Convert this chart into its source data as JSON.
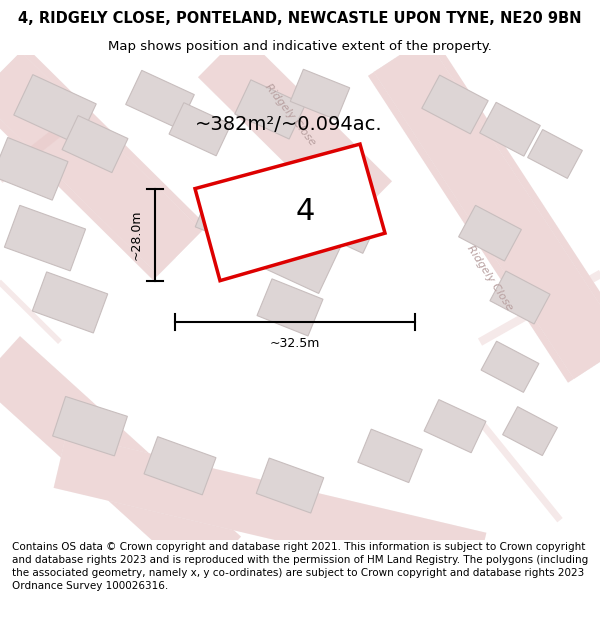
{
  "title": "4, RIDGELY CLOSE, PONTELAND, NEWCASTLE UPON TYNE, NE20 9BN",
  "subtitle": "Map shows position and indicative extent of the property.",
  "area_label": "~382m²/~0.094ac.",
  "property_number": "4",
  "dim_width": "~32.5m",
  "dim_height": "~28.0m",
  "footer": "Contains OS data © Crown copyright and database right 2021. This information is subject to Crown copyright and database rights 2023 and is reproduced with the permission of HM Land Registry. The polygons (including the associated geometry, namely x, y co-ordinates) are subject to Crown copyright and database rights 2023 Ordnance Survey 100026316.",
  "map_bg": "#f2eeee",
  "road_color": "#e8c8c8",
  "road_fill": "#f7f2f2",
  "building_color": "#ddd5d5",
  "building_edge": "#c8bebe",
  "property_outline_color": "#dd0000",
  "street_label_color": "#b8a0a0",
  "title_fontsize": 10.5,
  "subtitle_fontsize": 9.5,
  "area_label_fontsize": 15,
  "property_number_fontsize": 24,
  "footer_fontsize": 7.5,
  "title_weight": "normal"
}
